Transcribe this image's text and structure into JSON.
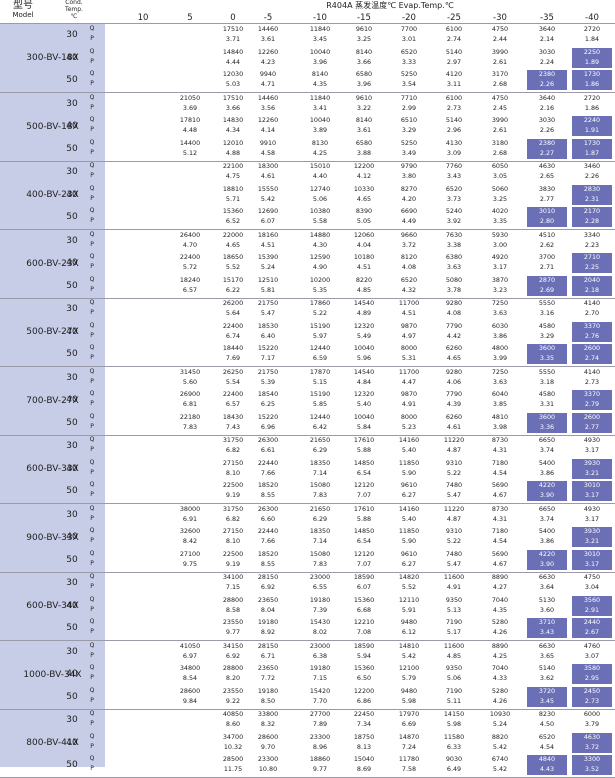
{
  "header": {
    "model_label": "型号",
    "model_label_en": "Model",
    "cond_label_1": "Cond.",
    "cond_label_2": "Temp.",
    "cond_label_3": "℃",
    "title": "R404A 蒸发温度℃ Evap.Temp.℃",
    "evap_temps": [
      "10",
      "5",
      "0",
      "-5",
      "-10",
      "-15",
      "-20",
      "-25",
      "-30",
      "-35",
      "-40"
    ]
  },
  "colors": {
    "left_panel": "#c7cde6",
    "highlight": "#6a6fb6"
  },
  "models": [
    {
      "name": "300-BV-18X",
      "rows": [
        {
          "cond": "30",
          "Q": [
            "",
            "",
            "17510",
            "14460",
            "11840",
            "9610",
            "7700",
            "6100",
            "4750",
            "3640",
            "2720"
          ],
          "P": [
            "",
            "",
            "3.71",
            "3.61",
            "3.45",
            "3.25",
            "3.01",
            "2.74",
            "2.44",
            "2.14",
            "1.84"
          ]
        },
        {
          "cond": "40",
          "Q": [
            "",
            "",
            "14840",
            "12260",
            "10040",
            "8140",
            "6520",
            "5140",
            "3990",
            "3030",
            "2250"
          ],
          "P": [
            "",
            "",
            "4.44",
            "4.23",
            "3.96",
            "3.66",
            "3.33",
            "2.97",
            "2.61",
            "2.24",
            "1.89"
          ]
        },
        {
          "cond": "50",
          "Q": [
            "",
            "",
            "12030",
            "9940",
            "8140",
            "6580",
            "5250",
            "4120",
            "3170",
            "2380",
            "1730"
          ],
          "P": [
            "",
            "",
            "5.03",
            "4.71",
            "4.35",
            "3.96",
            "3.54",
            "3.11",
            "2.68",
            "2.26",
            "1.86"
          ]
        }
      ]
    },
    {
      "name": "500-BV-18X",
      "rows": [
        {
          "cond": "30",
          "Q": [
            "",
            "21050",
            "17510",
            "14460",
            "11840",
            "9610",
            "7710",
            "6100",
            "4750",
            "3640",
            "2720"
          ],
          "P": [
            "",
            "3.69",
            "3.66",
            "3.56",
            "3.41",
            "3.22",
            "2.99",
            "2.73",
            "2.45",
            "2.16",
            "1.86"
          ]
        },
        {
          "cond": "40",
          "Q": [
            "",
            "17810",
            "14830",
            "12260",
            "10040",
            "8140",
            "6510",
            "5140",
            "3990",
            "3030",
            "2240"
          ],
          "P": [
            "",
            "4.48",
            "4.34",
            "4.14",
            "3.89",
            "3.61",
            "3.29",
            "2.96",
            "2.61",
            "2.26",
            "1.91"
          ]
        },
        {
          "cond": "50",
          "Q": [
            "",
            "14400",
            "12010",
            "9910",
            "8130",
            "6580",
            "5250",
            "4130",
            "3180",
            "2380",
            "1730"
          ],
          "P": [
            "",
            "5.12",
            "4.88",
            "4.58",
            "4.25",
            "3.88",
            "3.49",
            "3.09",
            "2.68",
            "2.27",
            "1.87"
          ]
        }
      ]
    },
    {
      "name": "400-BV-23X",
      "rows": [
        {
          "cond": "30",
          "Q": [
            "",
            "",
            "22100",
            "18300",
            "15010",
            "12200",
            "9790",
            "7760",
            "6050",
            "4630",
            "3460"
          ],
          "P": [
            "",
            "",
            "4.75",
            "4.61",
            "4.40",
            "4.12",
            "3.80",
            "3.43",
            "3.05",
            "2.65",
            "2.26"
          ]
        },
        {
          "cond": "40",
          "Q": [
            "",
            "",
            "18810",
            "15550",
            "12740",
            "10330",
            "8270",
            "6520",
            "5060",
            "3830",
            "2830"
          ],
          "P": [
            "",
            "",
            "5.71",
            "5.42",
            "5.06",
            "4.65",
            "4.20",
            "3.73",
            "3.25",
            "2.77",
            "2.31"
          ]
        },
        {
          "cond": "50",
          "Q": [
            "",
            "",
            "15360",
            "12690",
            "10380",
            "8390",
            "6690",
            "5240",
            "4020",
            "3010",
            "2170"
          ],
          "P": [
            "",
            "",
            "6.52",
            "6.07",
            "5.58",
            "5.05",
            "4.49",
            "3.92",
            "3.35",
            "2.80",
            "2.28"
          ]
        }
      ]
    },
    {
      "name": "600-BV-23X",
      "rows": [
        {
          "cond": "30",
          "Q": [
            "",
            "26400",
            "22000",
            "18160",
            "14880",
            "12060",
            "9660",
            "7630",
            "5930",
            "4510",
            "3340"
          ],
          "P": [
            "",
            "4.70",
            "4.65",
            "4.51",
            "4.30",
            "4.04",
            "3.72",
            "3.38",
            "3.00",
            "2.62",
            "2.23"
          ]
        },
        {
          "cond": "40",
          "Q": [
            "",
            "22400",
            "18650",
            "15390",
            "12590",
            "10180",
            "8120",
            "6380",
            "4920",
            "3700",
            "2710"
          ],
          "P": [
            "",
            "5.72",
            "5.52",
            "5.24",
            "4.90",
            "4.51",
            "4.08",
            "3.63",
            "3.17",
            "2.71",
            "2.25"
          ]
        },
        {
          "cond": "50",
          "Q": [
            "",
            "18240",
            "15170",
            "12510",
            "10200",
            "8220",
            "6520",
            "5080",
            "3870",
            "2870",
            "2040"
          ],
          "P": [
            "",
            "6.57",
            "6.22",
            "5.81",
            "5.35",
            "4.85",
            "4.32",
            "3.78",
            "3.23",
            "2.69",
            "2.18"
          ]
        }
      ]
    },
    {
      "name": "500-BV-27X",
      "rows": [
        {
          "cond": "30",
          "Q": [
            "",
            "",
            "26200",
            "21750",
            "17860",
            "14540",
            "11700",
            "9280",
            "7250",
            "5550",
            "4140"
          ],
          "P": [
            "",
            "",
            "5.64",
            "5.47",
            "5.22",
            "4.89",
            "4.51",
            "4.08",
            "3.63",
            "3.16",
            "2.70"
          ]
        },
        {
          "cond": "40",
          "Q": [
            "",
            "",
            "22400",
            "18530",
            "15190",
            "12320",
            "9870",
            "7790",
            "6030",
            "4580",
            "3370"
          ],
          "P": [
            "",
            "",
            "6.74",
            "6.40",
            "5.97",
            "5.49",
            "4.97",
            "4.42",
            "3.86",
            "3.29",
            "2.76"
          ]
        },
        {
          "cond": "50",
          "Q": [
            "",
            "",
            "18440",
            "15220",
            "12440",
            "10040",
            "8000",
            "6260",
            "4800",
            "3600",
            "2600"
          ],
          "P": [
            "",
            "",
            "7.69",
            "7.17",
            "6.59",
            "5.96",
            "5.31",
            "4.65",
            "3.99",
            "3.35",
            "2.74"
          ]
        }
      ]
    },
    {
      "name": "700-BV-27X",
      "rows": [
        {
          "cond": "30",
          "Q": [
            "",
            "31450",
            "26250",
            "21750",
            "17870",
            "14540",
            "11700",
            "9280",
            "7250",
            "5550",
            "4140"
          ],
          "P": [
            "",
            "5.60",
            "5.54",
            "5.39",
            "5.15",
            "4.84",
            "4.47",
            "4.06",
            "3.63",
            "3.18",
            "2.73"
          ]
        },
        {
          "cond": "40",
          "Q": [
            "",
            "26900",
            "22400",
            "18540",
            "15190",
            "12320",
            "9870",
            "7790",
            "6040",
            "4580",
            "3370"
          ],
          "P": [
            "",
            "6.81",
            "6.57",
            "6.25",
            "5.85",
            "5.40",
            "4.91",
            "4.39",
            "3.85",
            "3.31",
            "2.79"
          ]
        },
        {
          "cond": "50",
          "Q": [
            "",
            "22180",
            "18430",
            "15220",
            "12440",
            "10040",
            "8000",
            "6260",
            "4810",
            "3600",
            "2600"
          ],
          "P": [
            "",
            "7.83",
            "7.43",
            "6.96",
            "6.42",
            "5.84",
            "5.23",
            "4.61",
            "3.98",
            "3.36",
            "2.77"
          ]
        }
      ]
    },
    {
      "name": "600-BV-33X",
      "rows": [
        {
          "cond": "30",
          "Q": [
            "",
            "",
            "31750",
            "26300",
            "21650",
            "17610",
            "14160",
            "11220",
            "8730",
            "6650",
            "4930"
          ],
          "P": [
            "",
            "",
            "6.82",
            "6.61",
            "6.29",
            "5.88",
            "5.40",
            "4.87",
            "4.31",
            "3.74",
            "3.17"
          ]
        },
        {
          "cond": "40",
          "Q": [
            "",
            "",
            "27150",
            "22440",
            "18350",
            "14850",
            "11850",
            "9310",
            "7180",
            "5400",
            "3930"
          ],
          "P": [
            "",
            "",
            "8.10",
            "7.66",
            "7.14",
            "6.54",
            "5.90",
            "5.22",
            "4.54",
            "3.86",
            "3.21"
          ]
        },
        {
          "cond": "50",
          "Q": [
            "",
            "",
            "22500",
            "18520",
            "15080",
            "12120",
            "9610",
            "7480",
            "5690",
            "4220",
            "3010"
          ],
          "P": [
            "",
            "",
            "9.19",
            "8.55",
            "7.83",
            "7.07",
            "6.27",
            "5.47",
            "4.67",
            "3.90",
            "3.17"
          ]
        }
      ]
    },
    {
      "name": "900-BV-33X",
      "rows": [
        {
          "cond": "30",
          "Q": [
            "",
            "38000",
            "31750",
            "26300",
            "21650",
            "17610",
            "14160",
            "11220",
            "8730",
            "6650",
            "4930"
          ],
          "P": [
            "",
            "6.91",
            "6.82",
            "6.60",
            "6.29",
            "5.88",
            "5.40",
            "4.87",
            "4.31",
            "3.74",
            "3.17"
          ]
        },
        {
          "cond": "40",
          "Q": [
            "",
            "32600",
            "27150",
            "22440",
            "18350",
            "14850",
            "11850",
            "9310",
            "7180",
            "5400",
            "3930"
          ],
          "P": [
            "",
            "8.42",
            "8.10",
            "7.66",
            "7.14",
            "6.54",
            "5.90",
            "5.22",
            "4.54",
            "3.86",
            "3.21"
          ]
        },
        {
          "cond": "50",
          "Q": [
            "",
            "27100",
            "22500",
            "18520",
            "15080",
            "12120",
            "9610",
            "7480",
            "5690",
            "4220",
            "3010"
          ],
          "P": [
            "",
            "9.75",
            "9.19",
            "8.55",
            "7.83",
            "7.07",
            "6.27",
            "5.47",
            "4.67",
            "3.90",
            "3.17"
          ]
        }
      ]
    },
    {
      "name": "600-BV-34X",
      "rows": [
        {
          "cond": "30",
          "Q": [
            "",
            "",
            "34100",
            "28150",
            "23000",
            "18590",
            "14820",
            "11600",
            "8890",
            "6630",
            "4750"
          ],
          "P": [
            "",
            "",
            "7.15",
            "6.92",
            "6.55",
            "6.07",
            "5.52",
            "4.91",
            "4.27",
            "3.64",
            "3.04"
          ]
        },
        {
          "cond": "40",
          "Q": [
            "",
            "",
            "28800",
            "23650",
            "19180",
            "15360",
            "12110",
            "9350",
            "7040",
            "5130",
            "3560"
          ],
          "P": [
            "",
            "",
            "8.58",
            "8.04",
            "7.39",
            "6.68",
            "5.91",
            "5.13",
            "4.35",
            "3.60",
            "2.91"
          ]
        },
        {
          "cond": "50",
          "Q": [
            "",
            "",
            "23550",
            "19180",
            "15430",
            "12210",
            "9480",
            "7190",
            "5280",
            "3710",
            "2440"
          ],
          "P": [
            "",
            "",
            "9.77",
            "8.92",
            "8.02",
            "7.08",
            "6.12",
            "5.17",
            "4.26",
            "3.43",
            "2.67"
          ]
        }
      ]
    },
    {
      "name": "1000-BV-34X",
      "rows": [
        {
          "cond": "30",
          "Q": [
            "",
            "41050",
            "34150",
            "28150",
            "23000",
            "18590",
            "14810",
            "11600",
            "8890",
            "6630",
            "4760"
          ],
          "P": [
            "",
            "6.97",
            "6.92",
            "6.71",
            "6.38",
            "5.94",
            "5.42",
            "4.85",
            "4.25",
            "3.65",
            "3.07"
          ]
        },
        {
          "cond": "40",
          "Q": [
            "",
            "34800",
            "28800",
            "23650",
            "19180",
            "15360",
            "12100",
            "9350",
            "7040",
            "5140",
            "3580"
          ],
          "P": [
            "",
            "8.54",
            "8.20",
            "7.72",
            "7.15",
            "6.50",
            "5.79",
            "5.06",
            "4.33",
            "3.62",
            "2.95"
          ]
        },
        {
          "cond": "50",
          "Q": [
            "",
            "28600",
            "23550",
            "19180",
            "15420",
            "12200",
            "9480",
            "7190",
            "5280",
            "3720",
            "2450"
          ],
          "P": [
            "",
            "9.84",
            "9.22",
            "8.50",
            "7.70",
            "6.86",
            "5.98",
            "5.11",
            "4.26",
            "3.45",
            "2.73"
          ]
        }
      ]
    },
    {
      "name": "800-BV-41X",
      "rows": [
        {
          "cond": "30",
          "Q": [
            "",
            "",
            "40850",
            "33800",
            "27700",
            "22450",
            "17970",
            "14150",
            "10930",
            "8230",
            "6000"
          ],
          "P": [
            "",
            "",
            "8.60",
            "8.32",
            "7.89",
            "7.34",
            "6.69",
            "5.98",
            "5.24",
            "4.50",
            "3.79"
          ]
        },
        {
          "cond": "40",
          "Q": [
            "",
            "",
            "34700",
            "28600",
            "23300",
            "18750",
            "14870",
            "11580",
            "8820",
            "6520",
            "4630"
          ],
          "P": [
            "",
            "",
            "10.32",
            "9.70",
            "8.96",
            "8.13",
            "7.24",
            "6.33",
            "5.42",
            "4.54",
            "3.72"
          ]
        },
        {
          "cond": "50",
          "Q": [
            "",
            "",
            "28500",
            "23300",
            "18860",
            "15040",
            "11780",
            "9030",
            "6740",
            "4840",
            "3300"
          ],
          "P": [
            "",
            "",
            "11.75",
            "10.80",
            "9.77",
            "8.69",
            "7.58",
            "6.49",
            "5.42",
            "4.43",
            "3.52"
          ]
        }
      ]
    }
  ]
}
